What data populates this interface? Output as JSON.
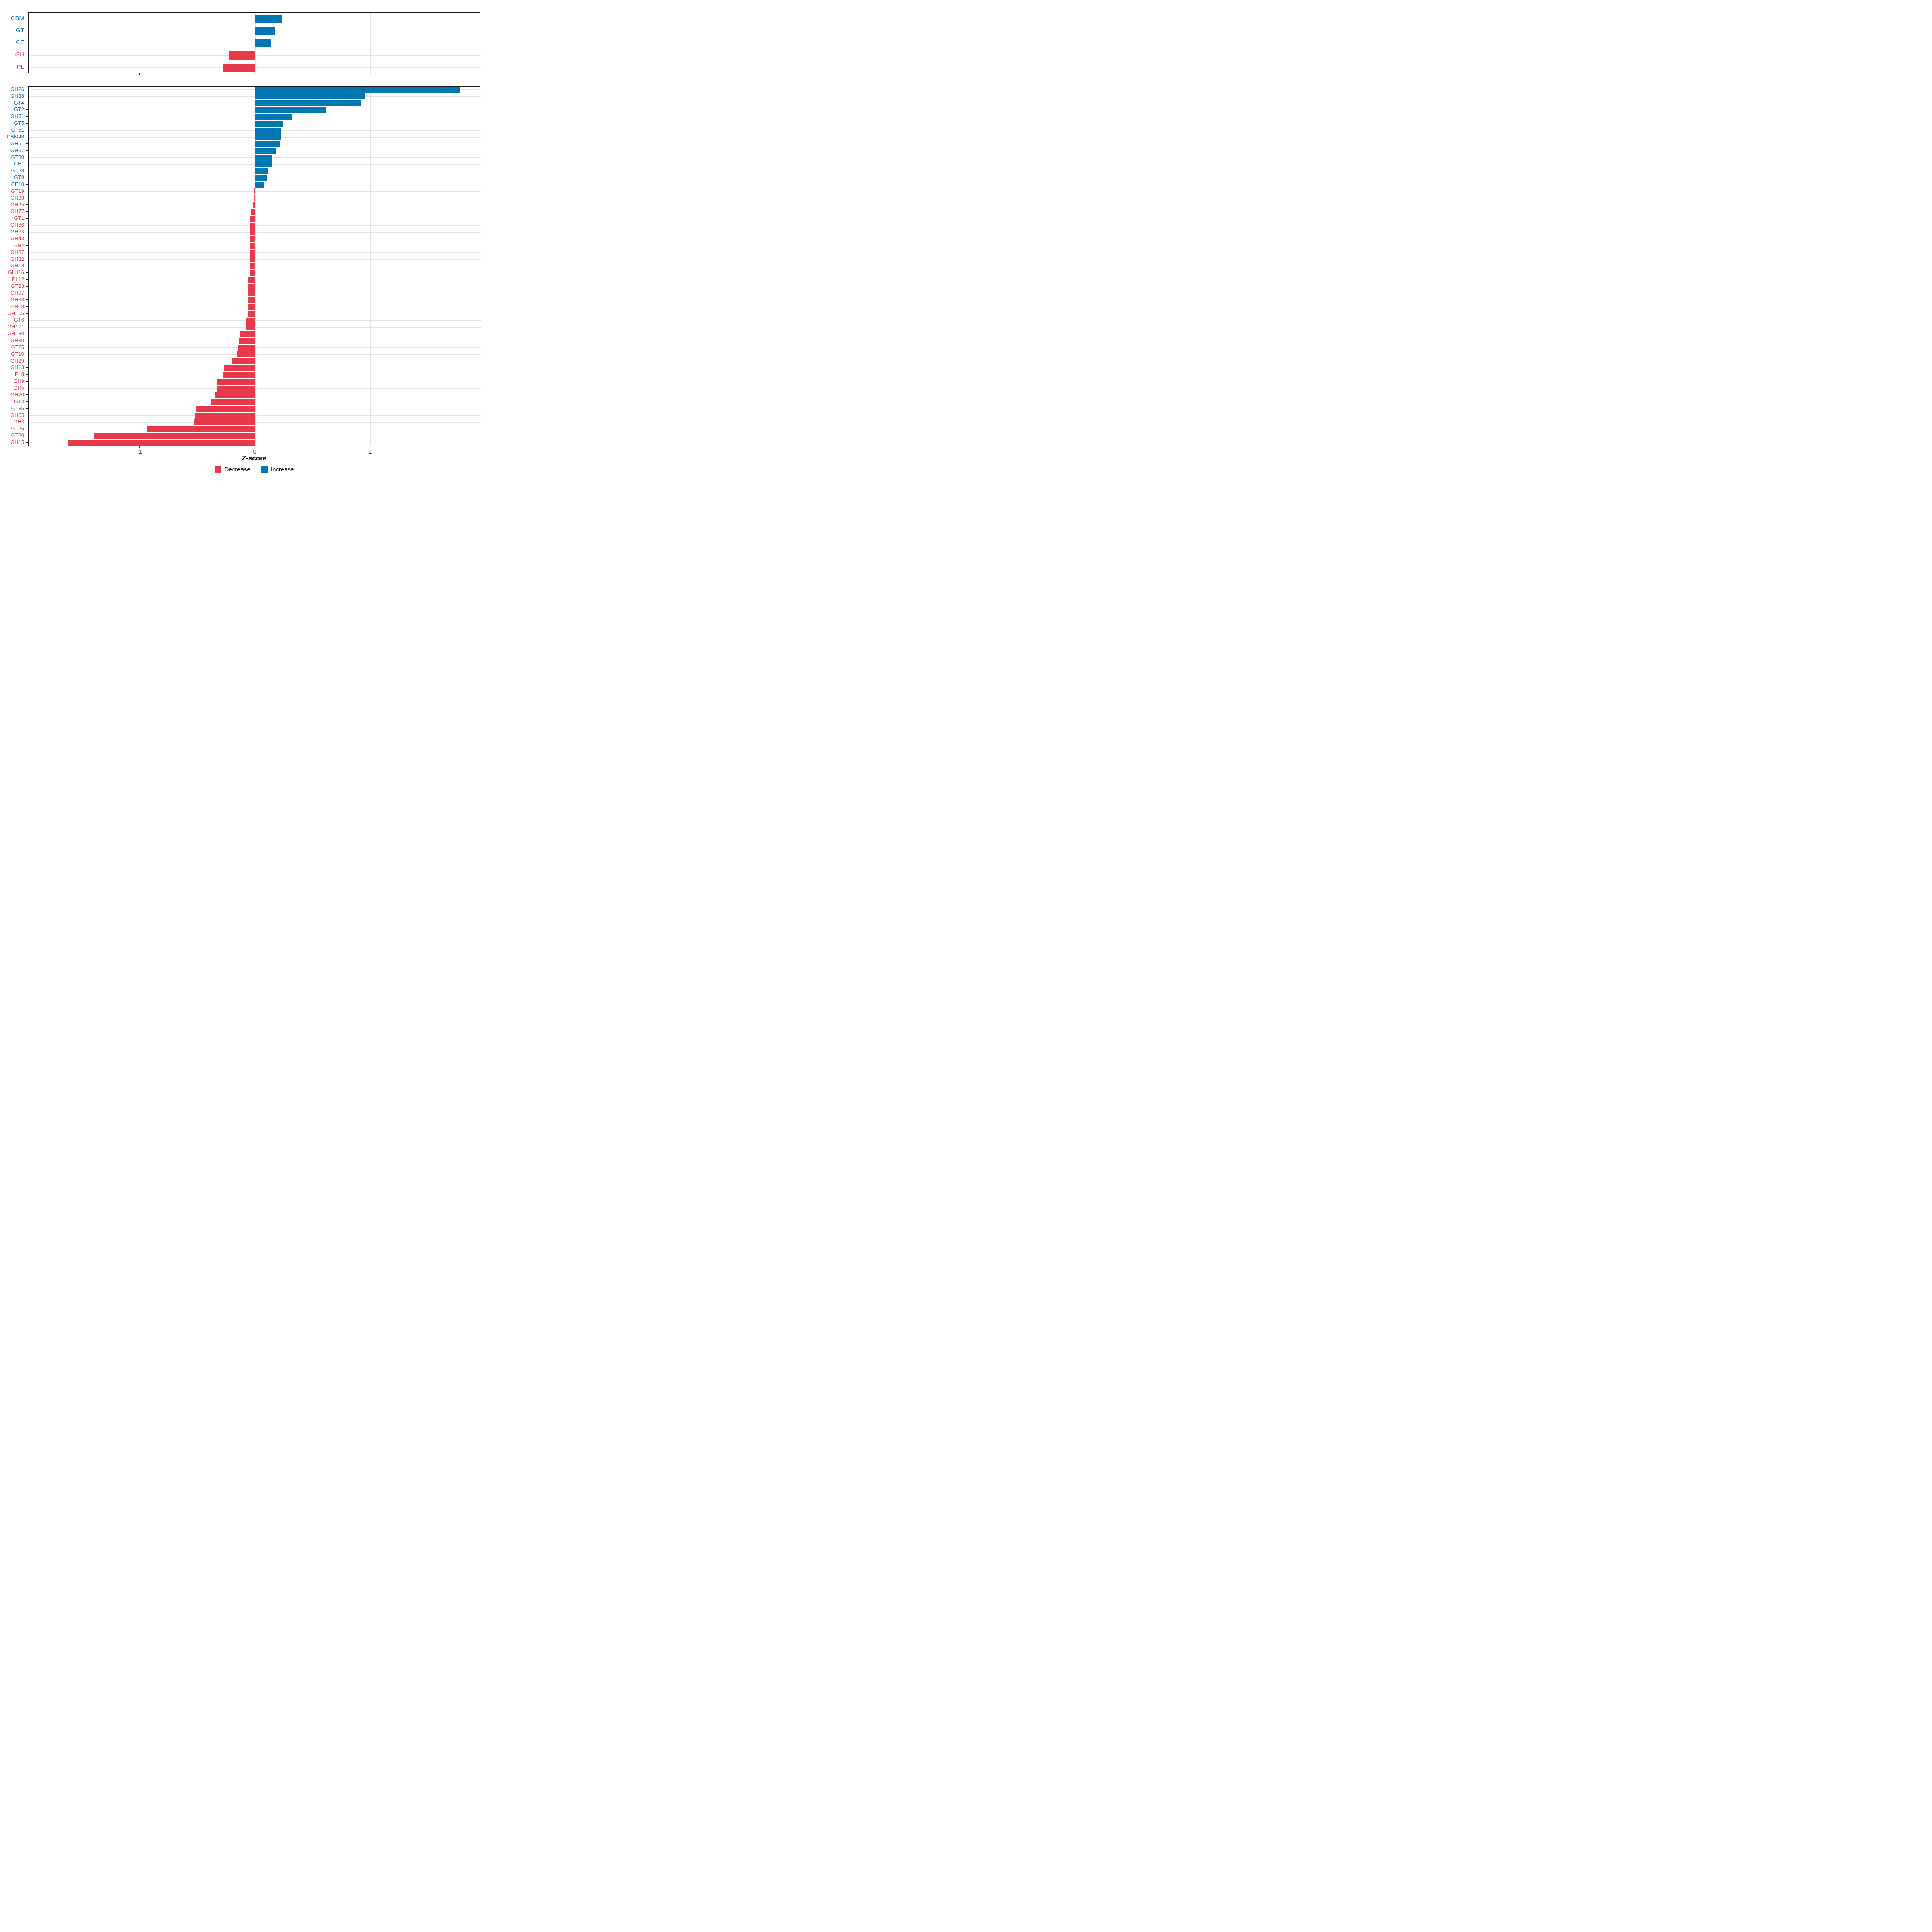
{
  "chart_data": [
    {
      "type": "bar",
      "orientation": "horizontal",
      "panel": "top",
      "title": "",
      "categories": [
        "CBM",
        "GT",
        "CE",
        "GH",
        "PL"
      ],
      "values": [
        0.23,
        0.17,
        0.14,
        -0.23,
        -0.28
      ],
      "xlim": [
        -1.96,
        1.96
      ],
      "xticks": [
        -1,
        0,
        1
      ],
      "grid": "major",
      "bar_color_rule": "positive=increase(blue), negative=decrease(red)"
    },
    {
      "type": "bar",
      "orientation": "horizontal",
      "panel": "bottom",
      "title": "",
      "categories": [
        "GH26",
        "GH38",
        "GT4",
        "GT2",
        "GH31",
        "GT5",
        "GT51",
        "CBM48",
        "GH51",
        "GH57",
        "GT30",
        "CE1",
        "GT28",
        "GT9",
        "CE10",
        "GT19",
        "GH33",
        "GH95",
        "GH77",
        "GT1",
        "GH66",
        "GH63",
        "GH43",
        "GH4",
        "GH37",
        "GH32",
        "GH18",
        "GH116",
        "PL12",
        "GT23",
        "GH97",
        "GH88",
        "GH68",
        "GH105",
        "GT6",
        "GH101",
        "GH130",
        "GH30",
        "GT25",
        "GT10",
        "GH29",
        "GH13",
        "PL8",
        "GH9",
        "GH5",
        "GH20",
        "GT3",
        "GT35",
        "GH65",
        "GH3",
        "GT26",
        "GT20",
        "GH15"
      ],
      "values": [
        1.78,
        0.95,
        0.92,
        0.61,
        0.32,
        0.24,
        0.225,
        0.22,
        0.215,
        0.18,
        0.15,
        0.148,
        0.113,
        0.105,
        0.076,
        -0.005,
        -0.01,
        -0.015,
        -0.035,
        -0.042,
        -0.044,
        -0.044,
        -0.043,
        -0.042,
        -0.042,
        -0.042,
        -0.044,
        -0.042,
        -0.061,
        -0.061,
        -0.063,
        -0.063,
        -0.063,
        -0.062,
        -0.078,
        -0.083,
        -0.13,
        -0.14,
        -0.144,
        -0.158,
        -0.198,
        -0.27,
        -0.28,
        -0.33,
        -0.33,
        -0.35,
        -0.38,
        -0.51,
        -0.52,
        -0.53,
        -0.94,
        -1.4,
        -1.62
      ],
      "xlim": [
        -1.96,
        1.96
      ],
      "xticks": [
        -1,
        0,
        1
      ],
      "grid": "major",
      "bar_color_rule": "positive=increase(blue), negative=decrease(red)"
    }
  ],
  "x_axis": {
    "label": "Z-score",
    "ticks": [
      {
        "label": "-1",
        "value": -1
      },
      {
        "label": "0",
        "value": 0
      },
      {
        "label": "1",
        "value": 1
      }
    ]
  },
  "legend": {
    "position": "bottom-center",
    "items": [
      {
        "label": "Decrease",
        "color": "#e8394a"
      },
      {
        "label": "Increase",
        "color": "#0076b4"
      }
    ]
  },
  "colors": {
    "increase": "#0076b4",
    "decrease": "#e8394a",
    "grid": "#e2e2e2",
    "panel_border": "#1a1a1a",
    "tick": "#222222",
    "axis_text": "#333333"
  }
}
